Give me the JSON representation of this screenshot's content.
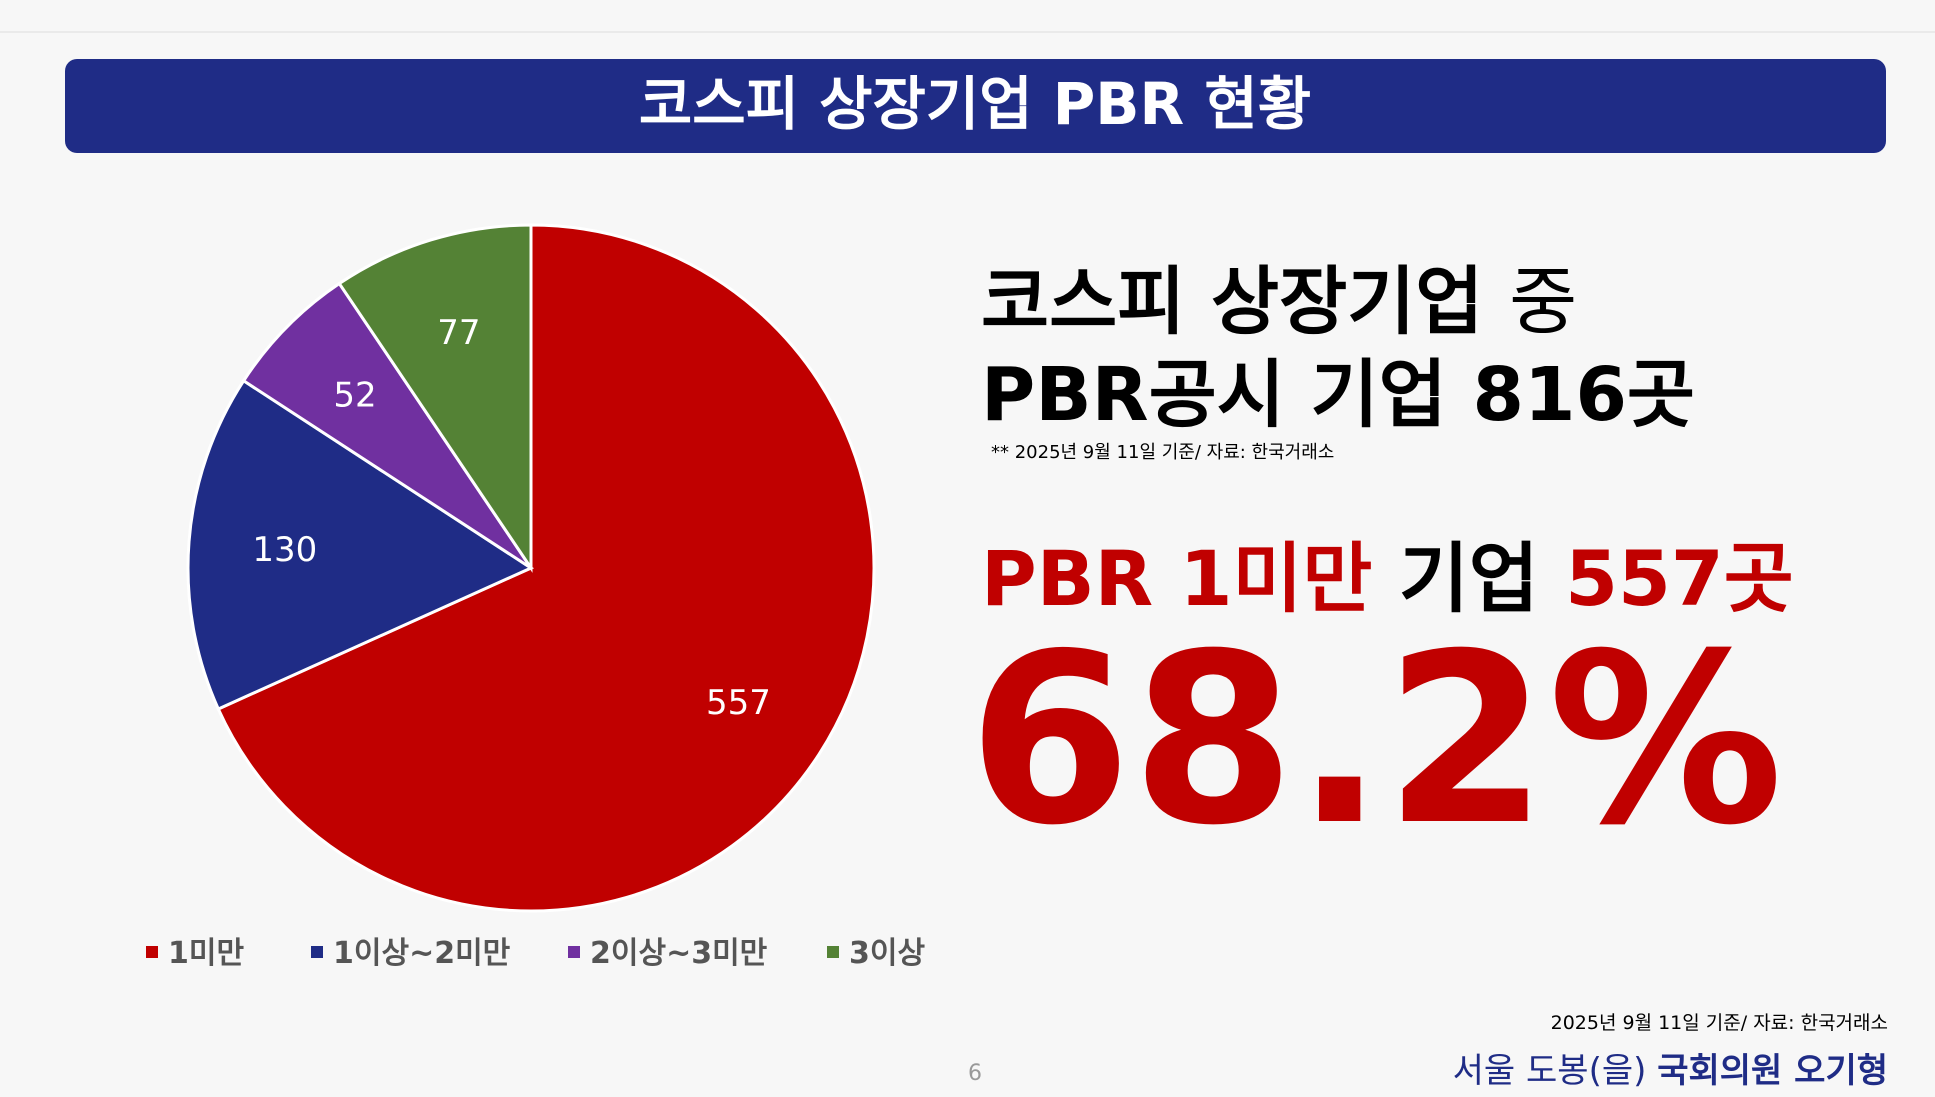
{
  "header": {
    "title": "코스피 상장기업 PBR 현황"
  },
  "chart_data": {
    "type": "pie",
    "categories": [
      "1미만",
      "1이상~2미만",
      "2이상~3미만",
      "3이상"
    ],
    "values": [
      557,
      130,
      52,
      77
    ],
    "colors": [
      "#c00000",
      "#1f2c86",
      "#7030a0",
      "#548235"
    ],
    "legend": "bottom"
  },
  "summary": {
    "line1_bold": "코스피 상장기업",
    "line1_rest": "중",
    "line2": "PBR공시 기업 816곳",
    "note": "** 2025년 9월 11일 기준/ 자료: 한국거래소",
    "highlight_a": "PBR 1미만",
    "highlight_b": "기업",
    "highlight_c": "557곳",
    "share": "68.2%"
  },
  "footer": {
    "source": "2025년 9월 11일 기준/ 자료: 한국거래소",
    "district": "서울 도봉(을)",
    "member": "국회의원 오기형",
    "page": "6"
  }
}
